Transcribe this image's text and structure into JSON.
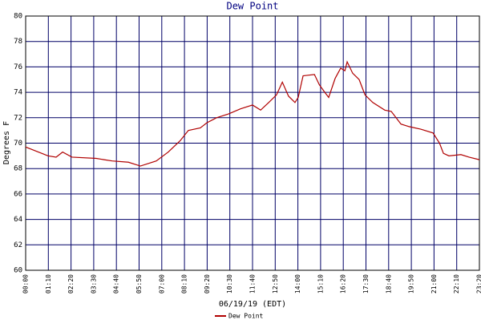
{
  "chart_data": {
    "type": "line",
    "title": "Dew Point",
    "x_label": "06/19/19 (EDT)",
    "y_label": "Degrees F",
    "x": [
      0,
      69,
      94,
      114,
      143,
      218,
      242,
      267,
      317,
      354,
      403,
      440,
      477,
      502,
      539,
      559,
      589,
      626,
      663,
      700,
      725,
      750,
      774,
      792,
      811,
      831,
      841,
      856,
      891,
      906,
      923,
      935,
      955,
      972,
      985,
      992,
      1009,
      1029,
      1047,
      1071,
      1108,
      1128,
      1158,
      1183,
      1219,
      1257,
      1277,
      1289,
      1306,
      1343,
      1368,
      1400
    ],
    "series": [
      {
        "name": "Dew Point",
        "color": "#b00000",
        "values": [
          69.7,
          69.0,
          68.9,
          69.3,
          68.9,
          68.8,
          68.7,
          68.6,
          68.5,
          68.2,
          68.6,
          69.3,
          70.2,
          71.0,
          71.2,
          71.6,
          72.0,
          72.3,
          72.7,
          73.0,
          72.6,
          73.2,
          73.8,
          74.8,
          73.7,
          73.2,
          73.6,
          75.3,
          75.4,
          74.6,
          74.0,
          73.6,
          75.1,
          75.9,
          75.7,
          76.4,
          75.5,
          75.0,
          73.8,
          73.2,
          72.6,
          72.5,
          71.5,
          71.3,
          71.1,
          70.8,
          70.0,
          69.2,
          69.0,
          69.1,
          68.9,
          68.7
        ]
      }
    ],
    "xlim": [
      0,
      1400
    ],
    "xticks": [
      {
        "value": 0,
        "label": "00:00"
      },
      {
        "value": 70,
        "label": "01:10"
      },
      {
        "value": 140,
        "label": "02:20"
      },
      {
        "value": 210,
        "label": "03:30"
      },
      {
        "value": 280,
        "label": "04:40"
      },
      {
        "value": 350,
        "label": "05:50"
      },
      {
        "value": 420,
        "label": "07:00"
      },
      {
        "value": 490,
        "label": "08:10"
      },
      {
        "value": 560,
        "label": "09:20"
      },
      {
        "value": 630,
        "label": "10:30"
      },
      {
        "value": 700,
        "label": "11:40"
      },
      {
        "value": 770,
        "label": "12:50"
      },
      {
        "value": 840,
        "label": "14:00"
      },
      {
        "value": 910,
        "label": "15:10"
      },
      {
        "value": 980,
        "label": "16:20"
      },
      {
        "value": 1050,
        "label": "17:30"
      },
      {
        "value": 1120,
        "label": "18:40"
      },
      {
        "value": 1190,
        "label": "19:50"
      },
      {
        "value": 1260,
        "label": "21:00"
      },
      {
        "value": 1330,
        "label": "22:10"
      },
      {
        "value": 1400,
        "label": "23:20"
      }
    ],
    "ylim": [
      60,
      80
    ],
    "yticks": [
      60,
      62,
      64,
      66,
      68,
      70,
      72,
      74,
      76,
      78,
      80
    ],
    "grid": true,
    "grid_color": "#000066"
  }
}
